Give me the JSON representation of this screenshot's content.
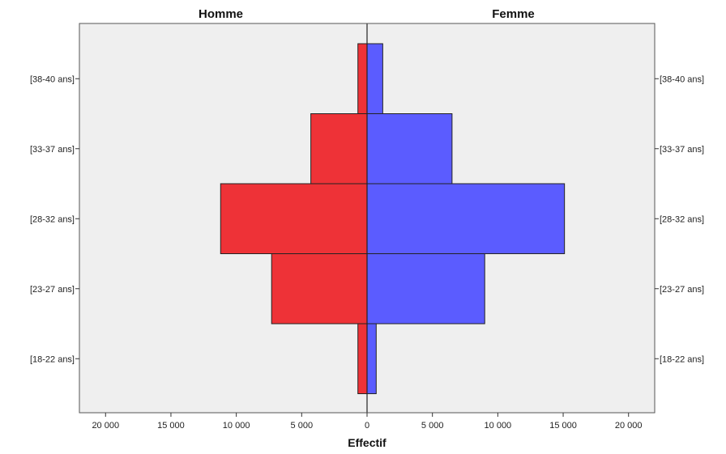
{
  "chart_data": {
    "type": "bar",
    "orientation": "horizontal",
    "style": "population-pyramid",
    "categories": [
      "[18-22 ans]",
      "[23-27 ans]",
      "[28-32 ans]",
      "[33-37 ans]",
      "[38-40 ans]"
    ],
    "series": [
      {
        "name": "Homme",
        "side": "left",
        "color": "#ee3237",
        "values": [
          700,
          7300,
          11200,
          4300,
          700
        ]
      },
      {
        "name": "Femme",
        "side": "right",
        "color": "#5b5cff",
        "values": [
          700,
          9000,
          15100,
          6500,
          1200
        ]
      }
    ],
    "xlabel": "Effectif",
    "x_ticks": [
      20000,
      15000,
      10000,
      5000,
      0,
      5000,
      10000,
      15000,
      20000
    ],
    "x_tick_labels": [
      "20 000",
      "15 000",
      "10 000",
      "5 000",
      "0",
      "5 000",
      "10 000",
      "15 000",
      "20 000"
    ],
    "xlim": [
      -22000,
      22000
    ],
    "panel_background": "#efefef",
    "bar_outline": "#222222",
    "grid": false,
    "legend": "none"
  }
}
